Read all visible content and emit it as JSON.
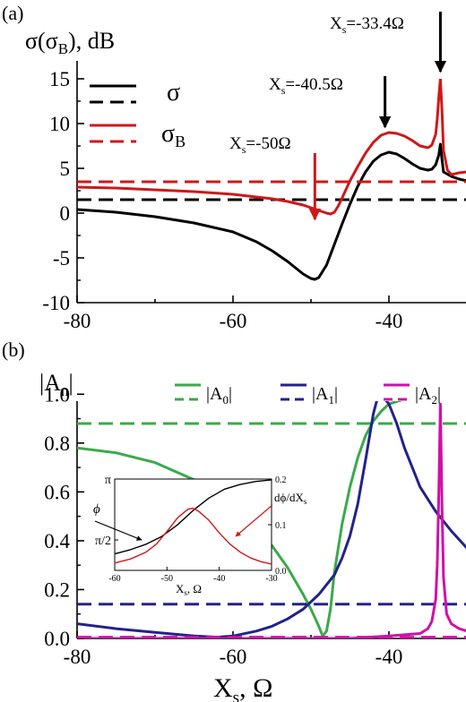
{
  "colors": {
    "black": "#000000",
    "red": "#d01818",
    "green": "#3aaa4a",
    "navy": "#22228a",
    "magenta": "#d010a8"
  },
  "chart_data": [
    {
      "type": "line",
      "panel_label": "(a)",
      "ylabel": "σ(σB), dB",
      "xlim": [
        -80,
        -30
      ],
      "ylim": [
        -10,
        15
      ],
      "x_ticks": [
        "-80",
        "-60",
        "-40"
      ],
      "y_ticks": [
        "15",
        "10",
        "5",
        "0",
        "-5",
        "-10"
      ],
      "legend": {
        "placement": "top-left",
        "entries": [
          "σ",
          "σB"
        ]
      },
      "series": [
        {
          "name": "σ",
          "style": "solid",
          "color": "#000000",
          "x": [
            -80,
            -75,
            -70,
            -65,
            -60,
            -57,
            -55,
            -53,
            -52,
            -51,
            -50,
            -49.5,
            -49,
            -48,
            -47,
            -46,
            -45,
            -44,
            -43,
            -42,
            -41,
            -40,
            -39,
            -38,
            -37,
            -36,
            -35,
            -34.5,
            -34,
            -33.6,
            -33.4,
            -33.2,
            -33,
            -32,
            -31,
            -30
          ],
          "y": [
            0.4,
            0.1,
            -0.4,
            -1.1,
            -2.1,
            -3.2,
            -4.2,
            -5.4,
            -6.1,
            -6.8,
            -7.3,
            -7.4,
            -7.2,
            -5.8,
            -3.5,
            -1.2,
            1.0,
            3.0,
            4.6,
            5.8,
            6.5,
            6.8,
            6.6,
            6.1,
            5.5,
            5.0,
            4.8,
            4.9,
            5.4,
            6.5,
            7.7,
            6.0,
            4.6,
            4.1,
            3.8,
            3.6
          ]
        },
        {
          "name": "σ",
          "style": "dashed",
          "color": "#000000",
          "x": [
            -80,
            -30
          ],
          "y": [
            1.5,
            1.5
          ]
        },
        {
          "name": "σB",
          "style": "solid",
          "color": "#d01818",
          "x": [
            -80,
            -75,
            -70,
            -65,
            -60,
            -57,
            -55,
            -53,
            -52,
            -51,
            -50,
            -49,
            -48,
            -47.5,
            -47,
            -46.5,
            -46,
            -45,
            -44,
            -43,
            -42,
            -41,
            -40,
            -39,
            -38,
            -37,
            -36,
            -35,
            -34.5,
            -34,
            -33.8,
            -33.6,
            -33.4,
            -33.2,
            -33,
            -32.5,
            -32,
            -31,
            -30
          ],
          "y": [
            2.9,
            2.8,
            2.6,
            2.4,
            2.1,
            1.8,
            1.6,
            1.3,
            1.1,
            0.9,
            0.6,
            0.3,
            0.0,
            -0.1,
            0.1,
            0.8,
            1.7,
            3.6,
            5.2,
            6.7,
            7.9,
            8.7,
            9.0,
            8.9,
            8.6,
            8.1,
            7.5,
            7.3,
            7.6,
            8.8,
            10.5,
            13.0,
            15.0,
            11.5,
            7.0,
            4.8,
            4.3,
            4.5,
            4.6
          ]
        },
        {
          "name": "σB",
          "style": "dashed",
          "color": "#d01818",
          "x": [
            -80,
            -30
          ],
          "y": [
            3.5,
            3.5
          ]
        }
      ],
      "annotations": [
        {
          "text": "Xs=-33.4Ω",
          "x": -33.4,
          "y_from": 22.5,
          "y_to": 15.8,
          "color": "#000000"
        },
        {
          "text": "Xs=-40.5Ω",
          "x": -40.5,
          "y_from": 15.3,
          "y_to": 9.6,
          "color": "#000000"
        },
        {
          "text": "Xs=-50Ω",
          "x": -49.5,
          "y_from": 6.7,
          "y_to": -0.7,
          "color": "#d01818"
        }
      ]
    },
    {
      "type": "line",
      "panel_label": "(b)",
      "ylabel": "|An|",
      "xlabel": "Xs, Ω",
      "xlim": [
        -80,
        -30
      ],
      "ylim": [
        0,
        1.1
      ],
      "x_ticks": [
        "-80",
        "-60",
        "-40"
      ],
      "y_ticks": [
        "1.0",
        "0.8",
        "0.6",
        "0.4",
        "0.2",
        "0.0"
      ],
      "legend": {
        "placement": "top",
        "entries": [
          "|A0|",
          "|A1|",
          "|A2|"
        ]
      },
      "series": [
        {
          "name": "|A0|",
          "style": "solid",
          "color": "#3aaa4a",
          "x": [
            -80,
            -75,
            -70,
            -65,
            -60,
            -57,
            -55,
            -53,
            -51,
            -50,
            -49,
            -48.5,
            -48,
            -47.5,
            -47,
            -46,
            -45,
            -44,
            -43,
            -42,
            -41,
            -40,
            -38,
            -36,
            -34,
            -32,
            -30
          ],
          "y": [
            0.78,
            0.76,
            0.72,
            0.65,
            0.54,
            0.45,
            0.38,
            0.29,
            0.18,
            0.12,
            0.05,
            0.01,
            0.03,
            0.12,
            0.27,
            0.47,
            0.62,
            0.74,
            0.83,
            0.89,
            0.93,
            0.96,
            0.98,
            0.99,
            1.0,
            1.0,
            1.0
          ]
        },
        {
          "name": "|A0|",
          "style": "dashed",
          "color": "#3aaa4a",
          "x": [
            -80,
            -30
          ],
          "y": [
            0.88,
            0.88
          ]
        },
        {
          "name": "|A1|",
          "style": "solid",
          "color": "#22228a",
          "x": [
            -80,
            -75,
            -70,
            -65,
            -62,
            -60,
            -57,
            -55,
            -53,
            -51,
            -49,
            -47,
            -46,
            -45,
            -44,
            -43,
            -42,
            -41.5,
            -41,
            -40,
            -39,
            -38,
            -36,
            -34,
            -32,
            -30
          ],
          "y": [
            0.06,
            0.04,
            0.025,
            0.01,
            0.005,
            0.01,
            0.03,
            0.05,
            0.08,
            0.12,
            0.18,
            0.26,
            0.33,
            0.42,
            0.55,
            0.73,
            0.92,
            0.98,
            1.0,
            0.96,
            0.88,
            0.78,
            0.62,
            0.52,
            0.44,
            0.37
          ]
        },
        {
          "name": "|A1|",
          "style": "dashed",
          "color": "#22228a",
          "x": [
            -80,
            -30
          ],
          "y": [
            0.14,
            0.14
          ]
        },
        {
          "name": "|A2|",
          "style": "solid",
          "color": "#d010a8",
          "x": [
            -80,
            -70,
            -60,
            -50,
            -45,
            -40,
            -36,
            -35,
            -34.5,
            -34,
            -33.8,
            -33.6,
            -33.4,
            -33.2,
            -33,
            -32.6,
            -32,
            -31,
            -30
          ],
          "y": [
            0.0,
            0.0,
            0.0,
            0.0,
            0.0,
            0.01,
            0.02,
            0.04,
            0.07,
            0.16,
            0.3,
            0.6,
            0.96,
            0.55,
            0.25,
            0.1,
            0.06,
            0.04,
            0.03
          ]
        },
        {
          "name": "|A2|",
          "style": "dashed",
          "color": "#d010a8",
          "x": [
            -80,
            -30
          ],
          "y": [
            0.005,
            0.005
          ]
        }
      ],
      "inset": {
        "xlabel": "Xs, Ω",
        "xlim": [
          -60,
          -30
        ],
        "x_ticks": [
          "-60",
          "-50",
          "-40",
          "-30"
        ],
        "left_ylim": [
          0.7854,
          3.1416
        ],
        "left_ticks": [
          "π",
          "π/2"
        ],
        "left_label": "ϕ",
        "right_ylim": [
          0,
          0.2
        ],
        "right_ticks": [
          "0.2",
          "0.1",
          "0.0"
        ],
        "right_label": "dϕ/dXs",
        "series": [
          {
            "name": "ϕ",
            "axis": "left",
            "color": "#000000",
            "x": [
              -60,
              -57,
              -54,
              -51,
              -48,
              -45,
              -42,
              -39,
              -36,
              -33,
              -30
            ],
            "y": [
              1.21,
              1.32,
              1.46,
              1.66,
              1.96,
              2.33,
              2.65,
              2.88,
              3.0,
              3.08,
              3.12
            ]
          },
          {
            "name": "dϕ/dXs",
            "axis": "right",
            "color": "#d01818",
            "x": [
              -60,
              -57,
              -54,
              -52,
              -50,
              -48,
              -46,
              -45,
              -44,
              -42,
              -40,
              -38,
              -36,
              -34,
              -32,
              -30
            ],
            "y": [
              0.016,
              0.025,
              0.04,
              0.058,
              0.085,
              0.115,
              0.134,
              0.136,
              0.13,
              0.11,
              0.082,
              0.058,
              0.04,
              0.027,
              0.019,
              0.014
            ]
          }
        ]
      }
    }
  ]
}
